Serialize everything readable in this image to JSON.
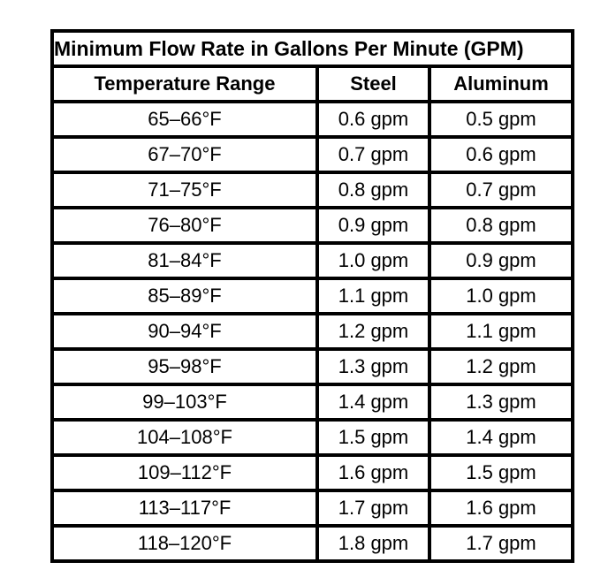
{
  "chart_data": {
    "type": "table",
    "title": "Minimum Flow Rate in Gallons Per Minute (GPM)",
    "columns": [
      "Temperature Range",
      "Steel",
      "Aluminum"
    ],
    "rows": [
      [
        "65–66°F",
        "0.6 gpm",
        "0.5 gpm"
      ],
      [
        "67–70°F",
        "0.7 gpm",
        "0.6 gpm"
      ],
      [
        "71–75°F",
        "0.8 gpm",
        "0.7 gpm"
      ],
      [
        "76–80°F",
        "0.9 gpm",
        "0.8 gpm"
      ],
      [
        "81–84°F",
        "1.0 gpm",
        "0.9 gpm"
      ],
      [
        "85–89°F",
        "1.1 gpm",
        "1.0 gpm"
      ],
      [
        "90–94°F",
        "1.2 gpm",
        "1.1 gpm"
      ],
      [
        "95–98°F",
        "1.3 gpm",
        "1.2 gpm"
      ],
      [
        "99–103°F",
        "1.4 gpm",
        "1.3 gpm"
      ],
      [
        "104–108°F",
        "1.5 gpm",
        "1.4 gpm"
      ],
      [
        "109–112°F",
        "1.6 gpm",
        "1.5 gpm"
      ],
      [
        "113–117°F",
        "1.7 gpm",
        "1.6 gpm"
      ],
      [
        "118–120°F",
        "1.8 gpm",
        "1.7 gpm"
      ]
    ],
    "colors": {
      "border": "#000000",
      "text": "#000000",
      "background": "#ffffff"
    }
  }
}
